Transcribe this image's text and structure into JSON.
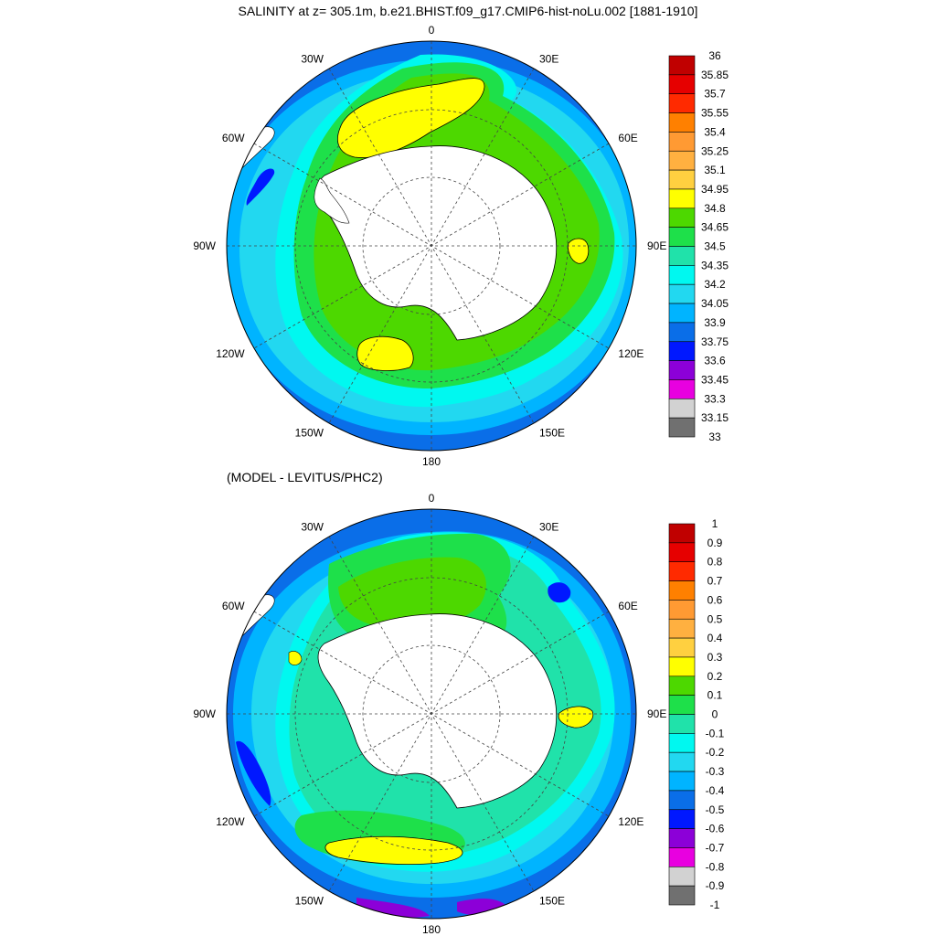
{
  "top_panel": {
    "title": "SALINITY at z= 305.1m, b.e21.BHIST.f09_g17.CMIP6-hist-noLu.002 [1881-1910]",
    "lon_labels": [
      {
        "text": "0",
        "lon": 0
      },
      {
        "text": "30E",
        "lon": 30
      },
      {
        "text": "60E",
        "lon": 60
      },
      {
        "text": "90E",
        "lon": 90
      },
      {
        "text": "120E",
        "lon": 120
      },
      {
        "text": "150E",
        "lon": 150
      },
      {
        "text": "180",
        "lon": 180
      },
      {
        "text": "150W",
        "lon": -150
      },
      {
        "text": "120W",
        "lon": -120
      },
      {
        "text": "90W",
        "lon": -90
      },
      {
        "text": "60W",
        "lon": -60
      },
      {
        "text": "30W",
        "lon": -30
      }
    ],
    "colorbar": {
      "labels": [
        "36",
        "35.85",
        "35.7",
        "35.55",
        "35.4",
        "35.25",
        "35.1",
        "34.95",
        "34.8",
        "34.65",
        "34.5",
        "34.35",
        "34.2",
        "34.05",
        "33.9",
        "33.75",
        "33.6",
        "33.45",
        "33.3",
        "33.15",
        "33"
      ],
      "colors": [
        "#c00000",
        "#e60000",
        "#ff2a00",
        "#ff8000",
        "#ff9a33",
        "#ffb040",
        "#ffd040",
        "#ffff00",
        "#4dd800",
        "#1ee04a",
        "#20e2aa",
        "#00f8f0",
        "#22d8f0",
        "#00b4ff",
        "#0a6ee8",
        "#0018ff",
        "#8c00d8",
        "#e800e0",
        "#d2d2d2",
        "#707070"
      ]
    }
  },
  "bottom_panel": {
    "title": "(MODEL - LEVITUS/PHC2)",
    "lon_labels": [
      {
        "text": "0",
        "lon": 0
      },
      {
        "text": "30E",
        "lon": 30
      },
      {
        "text": "60E",
        "lon": 60
      },
      {
        "text": "90E",
        "lon": 90
      },
      {
        "text": "120E",
        "lon": 120
      },
      {
        "text": "150E",
        "lon": 150
      },
      {
        "text": "180",
        "lon": 180
      },
      {
        "text": "150W",
        "lon": -150
      },
      {
        "text": "120W",
        "lon": -120
      },
      {
        "text": "90W",
        "lon": -90
      },
      {
        "text": "60W",
        "lon": -60
      },
      {
        "text": "30W",
        "lon": -30
      }
    ],
    "colorbar": {
      "labels": [
        "1",
        "0.9",
        "0.8",
        "0.7",
        "0.6",
        "0.5",
        "0.4",
        "0.3",
        "0.2",
        "0.1",
        "0",
        "-0.1",
        "-0.2",
        "-0.3",
        "-0.4",
        "-0.5",
        "-0.6",
        "-0.7",
        "-0.8",
        "-0.9",
        "-1"
      ],
      "colors": [
        "#c00000",
        "#e60000",
        "#ff2a00",
        "#ff8000",
        "#ff9a33",
        "#ffb040",
        "#ffd040",
        "#ffff00",
        "#4dd800",
        "#1ee04a",
        "#20e2aa",
        "#00f8f0",
        "#22d8f0",
        "#00b4ff",
        "#0a6ee8",
        "#0018ff",
        "#8c00d8",
        "#e800e0",
        "#d2d2d2",
        "#707070"
      ]
    }
  }
}
